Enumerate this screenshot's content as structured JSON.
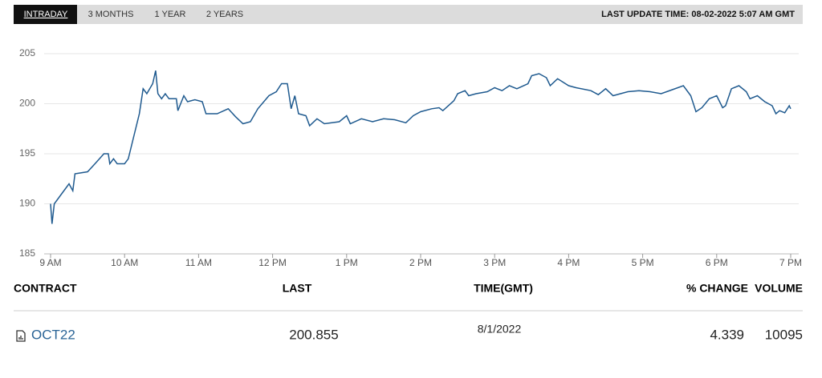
{
  "tabs": [
    "INTRADAY",
    "3 MONTHS",
    "1 YEAR",
    "2 YEARS"
  ],
  "last_update": "LAST UPDATE TIME: 08-02-2022 5:07 AM GMT",
  "chart_data": {
    "type": "line",
    "x": [
      9.0,
      9.02,
      9.05,
      9.15,
      9.25,
      9.3,
      9.33,
      9.5,
      9.6,
      9.72,
      9.78,
      9.8,
      9.85,
      9.9,
      10.0,
      10.05,
      10.1,
      10.2,
      10.25,
      10.3,
      10.38,
      10.42,
      10.45,
      10.5,
      10.55,
      10.6,
      10.7,
      10.72,
      10.8,
      10.85,
      10.95,
      11.05,
      11.1,
      11.25,
      11.4,
      11.5,
      11.6,
      11.7,
      11.8,
      11.95,
      12.05,
      12.12,
      12.2,
      12.25,
      12.3,
      12.35,
      12.45,
      12.5,
      12.6,
      12.7,
      12.9,
      13.0,
      13.05,
      13.2,
      13.35,
      13.5,
      13.65,
      13.8,
      13.9,
      14.0,
      14.15,
      14.25,
      14.3,
      14.45,
      14.5,
      14.6,
      14.65,
      14.75,
      14.9,
      15.0,
      15.1,
      15.2,
      15.3,
      15.45,
      15.5,
      15.6,
      15.7,
      15.75,
      15.85,
      16.0,
      16.1,
      16.3,
      16.4,
      16.5,
      16.6,
      16.8,
      16.95,
      17.1,
      17.25,
      17.4,
      17.55,
      17.65,
      17.72,
      17.8,
      17.9,
      18.0,
      18.08,
      18.12,
      18.2,
      18.3,
      18.4,
      18.45,
      18.55,
      18.65,
      18.75,
      18.8,
      18.85,
      18.92,
      18.98,
      19.0
    ],
    "series": [
      {
        "color": "#1f5a8f",
        "values": [
          190,
          188,
          190,
          191,
          192,
          191.3,
          193,
          193.2,
          194,
          195,
          195,
          194,
          194.5,
          194,
          194,
          194.5,
          196,
          199,
          201.5,
          201,
          202,
          203.3,
          201,
          200.5,
          201,
          200.5,
          200.5,
          199.3,
          200.8,
          200.2,
          200.4,
          200.2,
          199,
          199,
          199.5,
          198.7,
          198,
          198.2,
          199.5,
          200.8,
          201.2,
          202,
          202,
          199.5,
          200.8,
          199,
          198.8,
          197.8,
          198.5,
          198,
          198.2,
          198.8,
          198,
          198.5,
          198.2,
          198.5,
          198.4,
          198.1,
          198.8,
          199.2,
          199.5,
          199.6,
          199.3,
          200.3,
          201,
          201.3,
          200.8,
          201,
          201.2,
          201.6,
          201.3,
          201.8,
          201.5,
          202,
          202.8,
          203,
          202.6,
          201.8,
          202.5,
          201.8,
          201.6,
          201.3,
          200.9,
          201.5,
          200.8,
          201.2,
          201.3,
          201.2,
          201,
          201.4,
          201.8,
          200.8,
          199.2,
          199.6,
          200.5,
          200.8,
          199.6,
          199.8,
          201.5,
          201.8,
          201.2,
          200.5,
          200.8,
          200.2,
          199.8,
          199,
          199.3,
          199.1,
          199.8,
          199.5
        ]
      }
    ],
    "xlim": [
      9,
      19
    ],
    "xticks": [
      {
        "value": 9,
        "label": "9 AM"
      },
      {
        "value": 10,
        "label": "10 AM"
      },
      {
        "value": 11,
        "label": "11 AM"
      },
      {
        "value": 12,
        "label": "12 PM"
      },
      {
        "value": 13,
        "label": "1 PM"
      },
      {
        "value": 14,
        "label": "2 PM"
      },
      {
        "value": 15,
        "label": "3 PM"
      },
      {
        "value": 16,
        "label": "4 PM"
      },
      {
        "value": 17,
        "label": "5 PM"
      },
      {
        "value": 18,
        "label": "6 PM"
      },
      {
        "value": 19,
        "label": "7 PM"
      }
    ],
    "ylim": [
      185,
      205
    ],
    "yticks": [
      185,
      190,
      195,
      200,
      205
    ],
    "grid": true
  },
  "table": {
    "headers": [
      "CONTRACT",
      "LAST",
      "TIME(GMT)",
      "% CHANGE",
      "VOLUME"
    ],
    "rows": [
      [
        "OCT22",
        200.855,
        "8/1/2022",
        4.339,
        10095
      ]
    ]
  }
}
